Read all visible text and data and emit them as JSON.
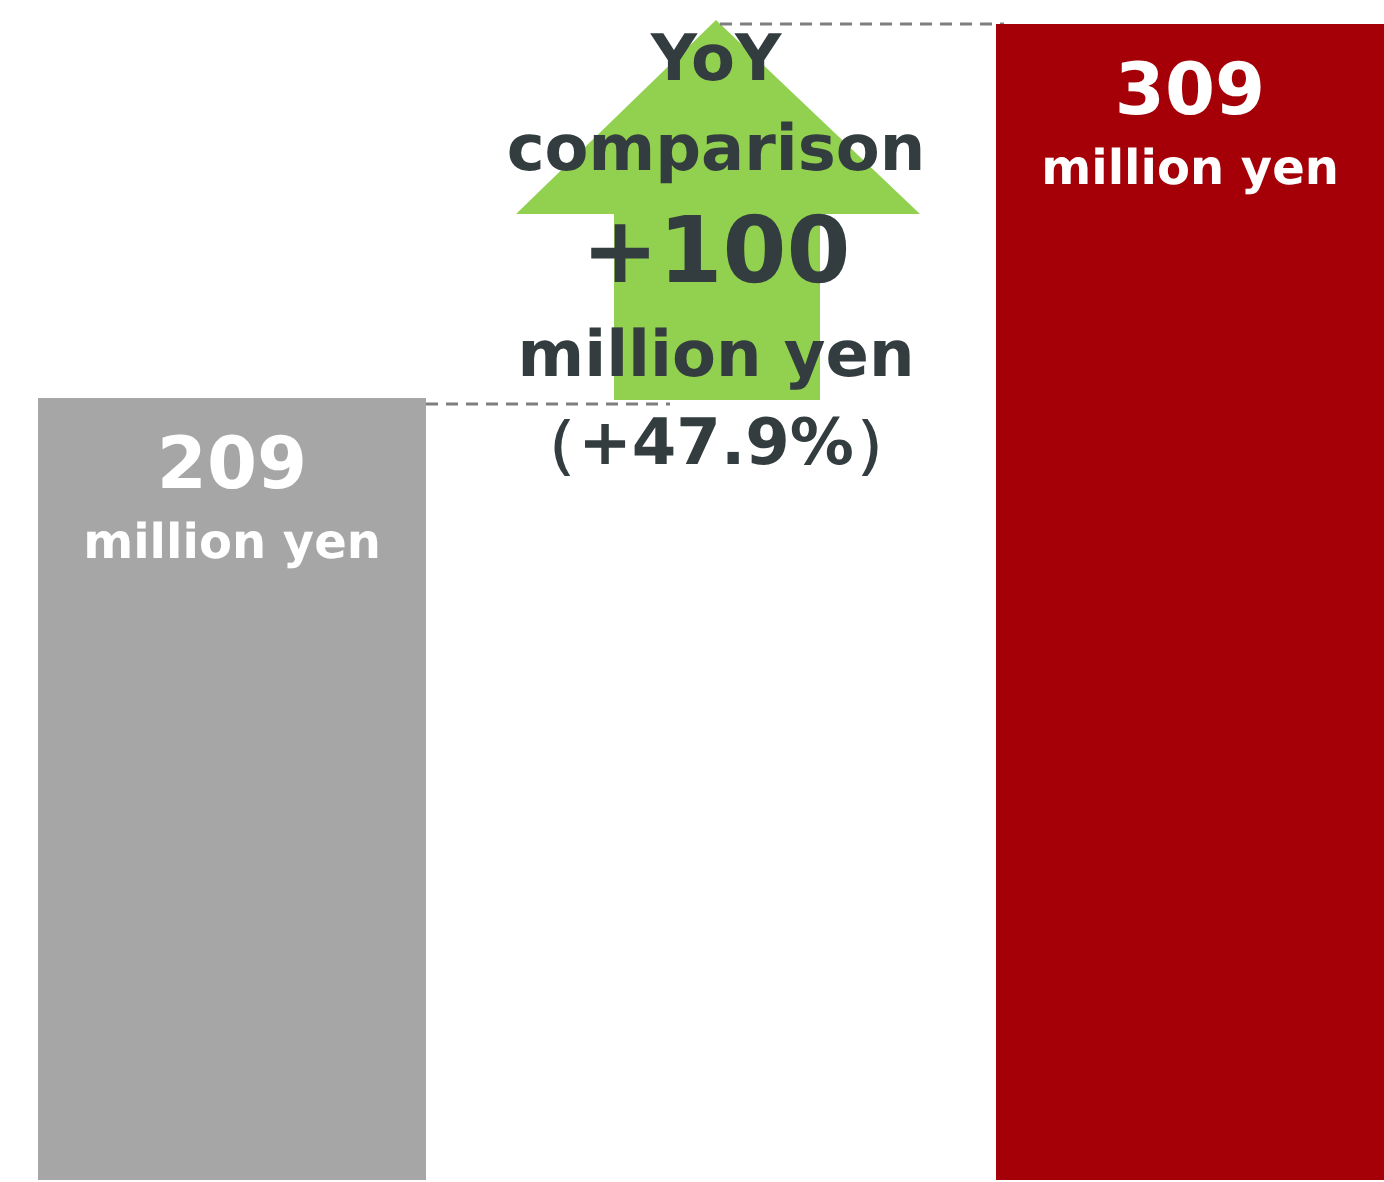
{
  "chart_data": {
    "type": "bar",
    "categories": [
      null,
      null
    ],
    "values": [
      209,
      309
    ],
    "colors": [
      "#a6a6a6",
      "#a50008"
    ],
    "data_labels": true,
    "annotations": [
      "million yen",
      "million yen",
      "YoY\ncomparison",
      "+100",
      "million yen",
      "（+47.9%）"
    ]
  }
}
